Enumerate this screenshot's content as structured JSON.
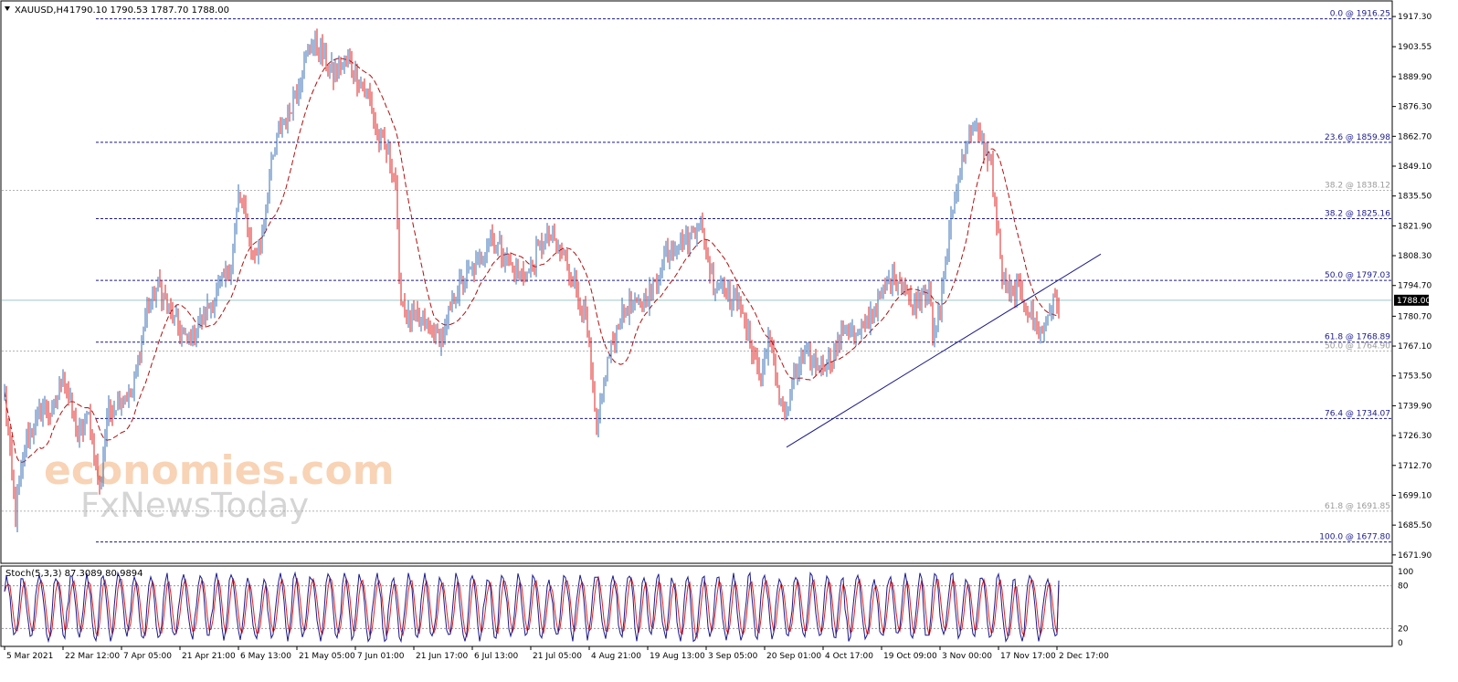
{
  "header": {
    "symbol": "XAUUSD,H4",
    "ohlc": "1790.10 1790.53 1787.70 1788.00"
  },
  "watermark": {
    "line1": "economies.com",
    "line2": "FxNewsToday"
  },
  "current_price_label": "1788.00",
  "colors": {
    "bull": "#3a6fb5",
    "bear": "#e02020",
    "ma": "#b01010",
    "fib_blue": "#1a1a8c",
    "fib_gray": "#9a9a9a",
    "trendline": "#1a1a8c",
    "stoch_main": "#1a1a8c",
    "stoch_signal": "#e02020"
  },
  "chart_data": [
    {
      "type": "candlestick",
      "title": "XAUUSD,H4",
      "y_ticks": [
        "1917.30",
        "1903.55",
        "1889.90",
        "1876.30",
        "1862.70",
        "1849.10",
        "1835.50",
        "1821.90",
        "1808.30",
        "1794.70",
        "1780.70",
        "1767.10",
        "1753.50",
        "1739.90",
        "1726.30",
        "1712.70",
        "1699.10",
        "1685.50",
        "1671.90"
      ],
      "y_tick_values": [
        1917.3,
        1903.55,
        1889.9,
        1876.3,
        1862.7,
        1849.1,
        1835.5,
        1821.9,
        1808.3,
        1794.7,
        1780.7,
        1767.1,
        1753.5,
        1739.9,
        1726.3,
        1712.7,
        1699.1,
        1685.5,
        1671.9
      ],
      "ylim": [
        1668.5,
        1924.0
      ],
      "x_ticks": [
        "5 Mar 2021",
        "22 Mar 12:00",
        "7 Apr 05:00",
        "21 Apr 21:00",
        "6 May 13:00",
        "21 May 05:00",
        "7 Jun 01:00",
        "21 Jun 17:00",
        "6 Jul 13:00",
        "21 Jul 05:00",
        "4 Aug 21:00",
        "19 Aug 13:00",
        "3 Sep 05:00",
        "20 Sep 01:00",
        "4 Oct 17:00",
        "19 Oct 09:00",
        "3 Nov 00:00",
        "17 Nov 17:00",
        "2 Dec 17:00"
      ],
      "x_tick_index": [
        0,
        32,
        64,
        96,
        128,
        160,
        192,
        224,
        256,
        288,
        320,
        352,
        384,
        416,
        448,
        480,
        512,
        544,
        576
      ],
      "anchor_closes": [
        [
          0,
          1745
        ],
        [
          6,
          1690
        ],
        [
          12,
          1725
        ],
        [
          22,
          1740
        ],
        [
          26,
          1735
        ],
        [
          32,
          1755
        ],
        [
          40,
          1725
        ],
        [
          46,
          1735
        ],
        [
          52,
          1700
        ],
        [
          56,
          1735
        ],
        [
          64,
          1745
        ],
        [
          70,
          1745
        ],
        [
          78,
          1785
        ],
        [
          84,
          1795
        ],
        [
          92,
          1780
        ],
        [
          100,
          1768
        ],
        [
          108,
          1780
        ],
        [
          116,
          1790
        ],
        [
          124,
          1805
        ],
        [
          128,
          1835
        ],
        [
          132,
          1825
        ],
        [
          136,
          1808
        ],
        [
          140,
          1812
        ],
        [
          144,
          1840
        ],
        [
          150,
          1865
        ],
        [
          156,
          1875
        ],
        [
          162,
          1890
        ],
        [
          168,
          1905
        ],
        [
          172,
          1902
        ],
        [
          176,
          1898
        ],
        [
          180,
          1890
        ],
        [
          184,
          1895
        ],
        [
          188,
          1898
        ],
        [
          194,
          1888
        ],
        [
          200,
          1880
        ],
        [
          204,
          1862
        ],
        [
          210,
          1855
        ],
        [
          214,
          1842
        ],
        [
          216,
          1795
        ],
        [
          220,
          1780
        ],
        [
          228,
          1778
        ],
        [
          234,
          1775
        ],
        [
          240,
          1770
        ],
        [
          246,
          1790
        ],
        [
          254,
          1800
        ],
        [
          260,
          1805
        ],
        [
          266,
          1818
        ],
        [
          272,
          1810
        ],
        [
          280,
          1800
        ],
        [
          286,
          1800
        ],
        [
          292,
          1810
        ],
        [
          298,
          1818
        ],
        [
          304,
          1810
        ],
        [
          310,
          1800
        ],
        [
          314,
          1790
        ],
        [
          318,
          1780
        ],
        [
          322,
          1745
        ],
        [
          324,
          1725
        ],
        [
          326,
          1740
        ],
        [
          330,
          1760
        ],
        [
          336,
          1778
        ],
        [
          340,
          1785
        ],
        [
          346,
          1785
        ],
        [
          352,
          1790
        ],
        [
          356,
          1795
        ],
        [
          362,
          1810
        ],
        [
          368,
          1815
        ],
        [
          374,
          1815
        ],
        [
          380,
          1825
        ],
        [
          384,
          1810
        ],
        [
          388,
          1795
        ],
        [
          394,
          1795
        ],
        [
          398,
          1785
        ],
        [
          402,
          1792
        ],
        [
          404,
          1778
        ],
        [
          408,
          1770
        ],
        [
          412,
          1758
        ],
        [
          414,
          1750
        ],
        [
          418,
          1772
        ],
        [
          424,
          1745
        ],
        [
          428,
          1735
        ],
        [
          432,
          1752
        ],
        [
          436,
          1760
        ],
        [
          440,
          1762
        ],
        [
          446,
          1758
        ],
        [
          452,
          1762
        ],
        [
          456,
          1765
        ],
        [
          460,
          1778
        ],
        [
          466,
          1770
        ],
        [
          470,
          1775
        ],
        [
          476,
          1785
        ],
        [
          480,
          1790
        ],
        [
          486,
          1800
        ],
        [
          492,
          1795
        ],
        [
          496,
          1785
        ],
        [
          500,
          1790
        ],
        [
          506,
          1795
        ],
        [
          508,
          1768
        ],
        [
          512,
          1785
        ],
        [
          516,
          1812
        ],
        [
          520,
          1835
        ],
        [
          526,
          1860
        ],
        [
          530,
          1868
        ],
        [
          534,
          1860
        ],
        [
          538,
          1855
        ],
        [
          540,
          1850
        ],
        [
          542,
          1830
        ],
        [
          546,
          1800
        ],
        [
          550,
          1790
        ],
        [
          554,
          1792
        ],
        [
          558,
          1788
        ],
        [
          562,
          1780
        ],
        [
          566,
          1775
        ],
        [
          568,
          1772
        ],
        [
          572,
          1785
        ],
        [
          576,
          1788
        ]
      ],
      "fibonacci_levels": [
        {
          "label": "0.0 @ 1916.25",
          "price": 1916.25,
          "start_index": 50,
          "tone": "blue"
        },
        {
          "label": "23.6 @ 1859.98",
          "price": 1859.98,
          "start_index": 50,
          "tone": "blue"
        },
        {
          "label": "38.2 @ 1838.12",
          "price": 1838.12,
          "start_index": 0,
          "tone": "gray"
        },
        {
          "label": "38.2 @ 1825.16",
          "price": 1825.16,
          "start_index": 50,
          "tone": "blue"
        },
        {
          "label": "50.0 @ 1797.03",
          "price": 1797.03,
          "start_index": 50,
          "tone": "blue"
        },
        {
          "label": "61.8 @ 1768.89",
          "price": 1768.89,
          "start_index": 50,
          "tone": "blue"
        },
        {
          "label": "50.0 @ 1764.90",
          "price": 1764.9,
          "start_index": 0,
          "tone": "gray"
        },
        {
          "label": "76.4 @ 1734.07",
          "price": 1734.07,
          "start_index": 50,
          "tone": "blue"
        },
        {
          "label": "61.8 @ 1691.85",
          "price": 1691.85,
          "start_index": 0,
          "tone": "gray"
        },
        {
          "label": "100.0 @ 1677.80",
          "price": 1677.8,
          "start_index": 50,
          "tone": "blue"
        }
      ],
      "current_price": 1788.0,
      "trendline": {
        "from": [
          428,
          1721
        ],
        "to": [
          600,
          1809
        ]
      }
    },
    {
      "type": "line",
      "title": "Stoch(5,3,3) 87.3089 80.9894",
      "series": [
        {
          "name": "Stoch main",
          "last": 87.3089
        },
        {
          "name": "Stoch signal",
          "last": 80.9894
        }
      ],
      "y_ticks": [
        "100",
        "80",
        "20",
        "0"
      ],
      "y_tick_values": [
        100,
        80,
        20,
        0
      ],
      "levels": [
        80,
        20
      ],
      "ylim": [
        0,
        100
      ]
    }
  ]
}
